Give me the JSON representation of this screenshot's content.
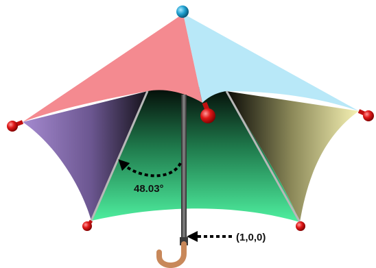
{
  "angle": {
    "value": "48.03°"
  },
  "direction": {
    "vector": "(1,0,0)"
  },
  "colors": {
    "canopy_red": "#f48a90",
    "canopy_blue": "#b8e8f8",
    "panel_purple": "#9a82c4",
    "panel_green": "#3edc8e",
    "panel_yellow": "#efeaa8",
    "tip_red": "#e01818",
    "top_ball": "#1fa0d0",
    "handle": "#c8885a"
  }
}
